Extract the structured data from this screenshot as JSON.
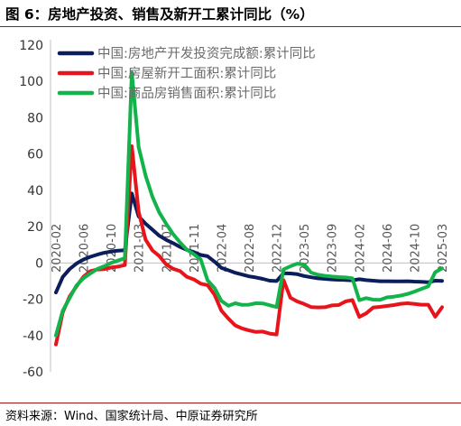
{
  "figure": {
    "title": "图 6：房地产投资、销售及新开工累计同比（%）",
    "source": "资料来源：Wind、国家统计局、中原证券研究所"
  },
  "colors": {
    "series_0": "#0b1e5b",
    "series_1": "#e8141c",
    "series_2": "#12b34a",
    "title_rule": "#a31515"
  },
  "chart_data": {
    "type": "line",
    "ylim": [
      -60,
      120
    ],
    "yticks": [
      120,
      100,
      80,
      60,
      40,
      20,
      0,
      -20,
      -40,
      -60
    ],
    "x": [
      "2020-02",
      "2020-03",
      "2020-04",
      "2020-05",
      "2020-06",
      "2020-07",
      "2020-08",
      "2020-09",
      "2020-10",
      "2020-11",
      "2020-12",
      "2021-02",
      "2021-03",
      "2021-04",
      "2021-05",
      "2021-06",
      "2021-07",
      "2021-08",
      "2021-09",
      "2021-10",
      "2021-11",
      "2021-12",
      "2022-02",
      "2022-03",
      "2022-04",
      "2022-05",
      "2022-06",
      "2022-07",
      "2022-08",
      "2022-09",
      "2022-10",
      "2022-11",
      "2022-12",
      "2023-02",
      "2023-03",
      "2023-04",
      "2023-05",
      "2023-06",
      "2023-07",
      "2023-08",
      "2023-09",
      "2023-10",
      "2023-11",
      "2023-12",
      "2024-02",
      "2024-03",
      "2024-04",
      "2024-05",
      "2024-06",
      "2024-07",
      "2024-08",
      "2024-09",
      "2024-10",
      "2024-11",
      "2024-12",
      "2025-02",
      "2025-03"
    ],
    "xtick_labels": [
      "2020-02",
      "2020-06",
      "2020-10",
      "2021-03",
      "2021-07",
      "2021-11",
      "2022-04",
      "2022-08",
      "2022-12",
      "2023-05",
      "2023-09",
      "2024-02",
      "2024-06",
      "2024-10",
      "2025-03"
    ],
    "series": [
      {
        "name": "中国:房地产开发投资完成额:累计同比",
        "values": [
          -16.3,
          -7.7,
          -3.3,
          -0.3,
          1.9,
          3.4,
          4.6,
          5.6,
          6.3,
          6.8,
          7.0,
          38.3,
          25.6,
          21.6,
          18.3,
          15.0,
          12.7,
          10.9,
          8.8,
          7.2,
          6.0,
          4.4,
          3.7,
          0.7,
          -2.7,
          -4.0,
          -5.4,
          -6.4,
          -7.4,
          -8.0,
          -8.8,
          -9.8,
          -10.0,
          -5.7,
          -5.8,
          -6.2,
          -7.2,
          -7.9,
          -8.5,
          -8.8,
          -9.1,
          -9.3,
          -9.4,
          -9.6,
          -9.0,
          -9.5,
          -9.8,
          -10.1,
          -10.1,
          -10.2,
          -10.2,
          -10.1,
          -10.3,
          -10.4,
          -10.6,
          -9.8,
          -9.9
        ]
      },
      {
        "name": "中国:房屋新开工面积:累计同比",
        "values": [
          -44.9,
          -27.2,
          -18.4,
          -12.8,
          -7.6,
          -4.5,
          -3.6,
          -3.4,
          -2.5,
          -2.0,
          -1.2,
          64.3,
          28.2,
          12.8,
          6.9,
          3.8,
          -0.9,
          -3.2,
          -4.5,
          -7.7,
          -9.1,
          -11.4,
          -12.2,
          -17.5,
          -26.3,
          -30.6,
          -34.4,
          -36.1,
          -37.2,
          -38.0,
          -37.8,
          -38.9,
          -39.4,
          -9.4,
          -19.2,
          -21.2,
          -22.6,
          -24.3,
          -24.5,
          -24.4,
          -23.4,
          -23.2,
          -21.2,
          -20.4,
          -29.7,
          -27.8,
          -24.6,
          -24.2,
          -23.7,
          -23.2,
          -22.5,
          -22.2,
          -22.6,
          -23.0,
          -23.0,
          -29.6,
          -24.4
        ]
      },
      {
        "name": "中国:商品房销售面积:累计同比",
        "values": [
          -39.9,
          -26.3,
          -19.3,
          -12.3,
          -8.4,
          -5.8,
          -3.3,
          -1.8,
          0.0,
          1.3,
          2.6,
          104.9,
          63.8,
          48.1,
          36.4,
          27.7,
          21.5,
          15.9,
          11.3,
          7.3,
          4.8,
          1.9,
          -9.6,
          -13.8,
          -20.9,
          -23.6,
          -22.2,
          -23.1,
          -23.0,
          -22.2,
          -22.3,
          -23.3,
          -24.3,
          -3.6,
          -1.8,
          -0.4,
          -0.9,
          -5.3,
          -6.5,
          -7.1,
          -7.5,
          -7.8,
          -8.0,
          -8.5,
          -20.5,
          -19.4,
          -20.2,
          -20.3,
          -19.0,
          -18.6,
          -18.0,
          -17.1,
          -15.8,
          -14.3,
          -12.9,
          -5.1,
          -3.0
        ]
      }
    ],
    "legend_position": "top-center",
    "grid": false
  }
}
